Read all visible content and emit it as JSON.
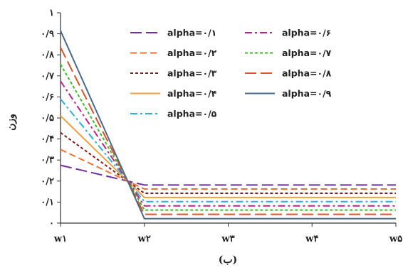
{
  "chart_data": {
    "type": "line",
    "title": "",
    "caption": "(ب)",
    "xlabel": "",
    "ylabel": "وزن",
    "categories": [
      "w۱",
      "w۲",
      "w۳",
      "w۴",
      "w۵"
    ],
    "ylim": [
      0,
      1
    ],
    "y_tick_labels": [
      "۰",
      "۰/۱",
      "۰/۲",
      "۰/۳",
      "۰/۴",
      "۰/۵",
      "۰/۶",
      "۰/۷",
      "۰/۸",
      "۰/۹",
      "۱"
    ],
    "grid": false,
    "legend_position": "top-right",
    "series": [
      {
        "name": "alpha=۰/۱",
        "color": "#7030a0",
        "dash": "long-dash",
        "values": [
          0.275,
          0.181,
          0.181,
          0.181,
          0.181
        ]
      },
      {
        "name": "alpha=۰/۲",
        "color": "#f07030",
        "dash": "dash",
        "values": [
          0.35,
          0.162,
          0.162,
          0.162,
          0.162
        ]
      },
      {
        "name": "alpha=۰/۳",
        "color": "#7f1f1f",
        "dash": "dot",
        "values": [
          0.43,
          0.142,
          0.142,
          0.142,
          0.142
        ]
      },
      {
        "name": "alpha=۰/۴",
        "color": "#f0a040",
        "dash": "solid",
        "values": [
          0.51,
          0.122,
          0.122,
          0.122,
          0.122
        ]
      },
      {
        "name": "alpha=۰/۵",
        "color": "#2ab0e0",
        "dash": "dash-dot",
        "values": [
          0.59,
          0.102,
          0.102,
          0.102,
          0.102
        ]
      },
      {
        "name": "alpha=۰/۶",
        "color": "#c0208a",
        "dash": "dash-dot",
        "values": [
          0.675,
          0.082,
          0.082,
          0.082,
          0.082
        ]
      },
      {
        "name": "alpha=۰/۷",
        "color": "#33c020",
        "dash": "dot",
        "values": [
          0.755,
          0.062,
          0.062,
          0.062,
          0.062
        ]
      },
      {
        "name": "alpha=۰/۸",
        "color": "#e05020",
        "dash": "long-dash",
        "values": [
          0.835,
          0.042,
          0.042,
          0.042,
          0.042
        ]
      },
      {
        "name": "alpha=۰/۹",
        "color": "#4a6a8c",
        "dash": "solid",
        "values": [
          0.915,
          0.021,
          0.021,
          0.021,
          0.021
        ]
      }
    ]
  }
}
